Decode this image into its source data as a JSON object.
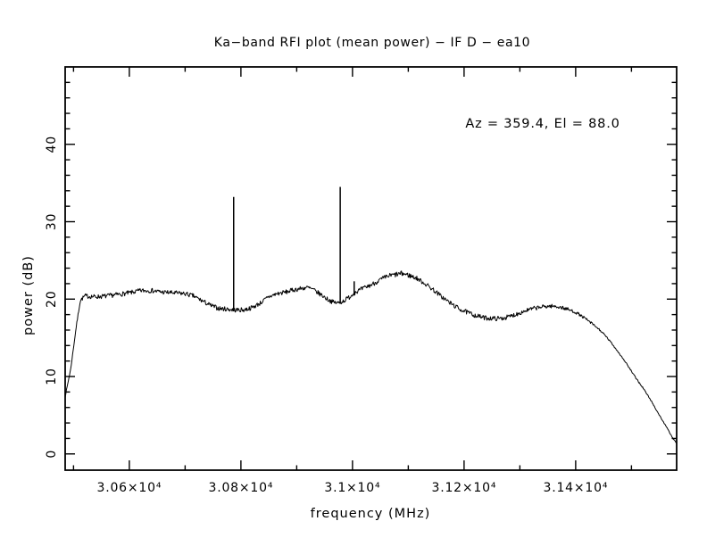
{
  "figure": {
    "background": "#ffffff",
    "foreground": "#000000"
  },
  "chart_data": {
    "type": "line",
    "title": "Ka−band RFI plot (mean power) − IF D − ea10",
    "annotation": "Az = 359.4, El = 88.0",
    "xlabel": "frequency (MHz)",
    "ylabel": "power (dB)",
    "grid": false,
    "legend": "none",
    "line_color": "#000000",
    "xlim": [
      30485,
      31581
    ],
    "ylim": [
      -2.1,
      50.0
    ],
    "x_ticks": {
      "values": [
        30600,
        30800,
        31000,
        31200,
        31400
      ],
      "labels": [
        "3.06×10⁴",
        "3.08×10⁴",
        "3.1×10⁴",
        "3.12×10⁴",
        "3.14×10⁴"
      ]
    },
    "x_minor_ticks": [
      30500,
      30700,
      30900,
      31100,
      31300,
      31500
    ],
    "y_ticks": {
      "values": [
        0,
        10,
        20,
        30,
        40
      ],
      "labels": [
        "0",
        "10",
        "20",
        "30",
        "40"
      ]
    },
    "y_minor_step": 2,
    "noise_seed": 7,
    "baseline_points": [
      [
        30485,
        7.4,
        0.1
      ],
      [
        30495,
        11.0,
        0.1
      ],
      [
        30505,
        16.5,
        0.15
      ],
      [
        30512,
        19.8,
        0.22
      ],
      [
        30520,
        20.4,
        0.3
      ],
      [
        30540,
        20.3,
        0.3
      ],
      [
        30560,
        20.4,
        0.3
      ],
      [
        30580,
        20.6,
        0.3
      ],
      [
        30600,
        20.8,
        0.3
      ],
      [
        30620,
        21.1,
        0.3
      ],
      [
        30640,
        21.1,
        0.3
      ],
      [
        30660,
        20.9,
        0.3
      ],
      [
        30680,
        20.8,
        0.3
      ],
      [
        30700,
        20.7,
        0.3
      ],
      [
        30715,
        20.4,
        0.3
      ],
      [
        30730,
        19.8,
        0.3
      ],
      [
        30745,
        19.2,
        0.3
      ],
      [
        30760,
        18.8,
        0.3
      ],
      [
        30775,
        18.7,
        0.3
      ],
      [
        30790,
        18.6,
        0.3
      ],
      [
        30805,
        18.6,
        0.3
      ],
      [
        30820,
        18.9,
        0.3
      ],
      [
        30835,
        19.5,
        0.3
      ],
      [
        30850,
        20.3,
        0.3
      ],
      [
        30865,
        20.7,
        0.3
      ],
      [
        30880,
        20.9,
        0.3
      ],
      [
        30895,
        21.2,
        0.3
      ],
      [
        30910,
        21.4,
        0.3
      ],
      [
        30920,
        21.5,
        0.3
      ],
      [
        30930,
        21.2,
        0.3
      ],
      [
        30945,
        20.5,
        0.3
      ],
      [
        30955,
        20.0,
        0.3
      ],
      [
        30965,
        19.6,
        0.3
      ],
      [
        30975,
        19.5,
        0.3
      ],
      [
        30985,
        19.8,
        0.3
      ],
      [
        30995,
        20.3,
        0.3
      ],
      [
        31005,
        20.9,
        0.3
      ],
      [
        31020,
        21.4,
        0.3
      ],
      [
        31035,
        21.9,
        0.3
      ],
      [
        31050,
        22.5,
        0.32
      ],
      [
        31065,
        23.0,
        0.33
      ],
      [
        31080,
        23.2,
        0.35
      ],
      [
        31090,
        23.3,
        0.35
      ],
      [
        31100,
        23.1,
        0.35
      ],
      [
        31115,
        22.7,
        0.3
      ],
      [
        31130,
        22.0,
        0.3
      ],
      [
        31145,
        21.2,
        0.3
      ],
      [
        31160,
        20.3,
        0.3
      ],
      [
        31175,
        19.5,
        0.3
      ],
      [
        31190,
        18.8,
        0.3
      ],
      [
        31205,
        18.3,
        0.3
      ],
      [
        31220,
        17.9,
        0.3
      ],
      [
        31235,
        17.6,
        0.3
      ],
      [
        31250,
        17.5,
        0.3
      ],
      [
        31265,
        17.5,
        0.3
      ],
      [
        31280,
        17.7,
        0.3
      ],
      [
        31295,
        18.1,
        0.3
      ],
      [
        31310,
        18.5,
        0.28
      ],
      [
        31325,
        18.8,
        0.28
      ],
      [
        31340,
        19.0,
        0.26
      ],
      [
        31355,
        19.1,
        0.25
      ],
      [
        31370,
        19.0,
        0.25
      ],
      [
        31385,
        18.7,
        0.24
      ],
      [
        31400,
        18.3,
        0.2
      ],
      [
        31415,
        17.6,
        0.18
      ],
      [
        31430,
        16.8,
        0.15
      ],
      [
        31445,
        15.9,
        0.14
      ],
      [
        31460,
        14.7,
        0.12
      ],
      [
        31475,
        13.3,
        0.1
      ],
      [
        31490,
        11.8,
        0.1
      ],
      [
        31505,
        10.1,
        0.1
      ],
      [
        31520,
        8.6,
        0.1
      ],
      [
        31535,
        6.9,
        0.08
      ],
      [
        31550,
        5.0,
        0.08
      ],
      [
        31565,
        3.2,
        0.06
      ],
      [
        31575,
        1.9,
        0.05
      ],
      [
        31581,
        1.4,
        0.05
      ]
    ],
    "spikes": [
      {
        "freq": 30787,
        "top": 33.2
      },
      {
        "freq": 30978,
        "top": 34.5
      },
      {
        "freq": 31003,
        "top": 22.3
      }
    ]
  }
}
